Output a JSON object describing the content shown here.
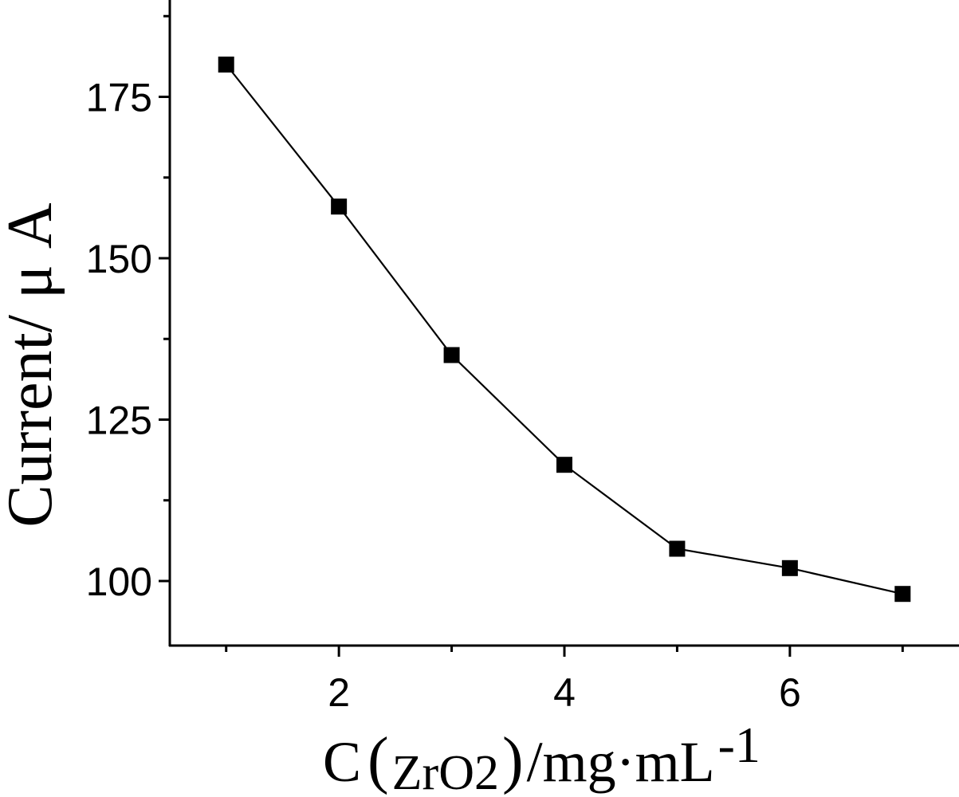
{
  "chart_data": {
    "type": "line",
    "title": "",
    "xlabel": {
      "main": "C",
      "paren_open": "(",
      "sub": "ZrO2",
      "paren_close": ")",
      "unit": "/mg·mL",
      "sup": "-1"
    },
    "ylabel": "Current/ μ A",
    "x": [
      1,
      2,
      3,
      4,
      5,
      6,
      7
    ],
    "series": [
      {
        "values": [
          180,
          158,
          135,
          118,
          105,
          102,
          98
        ],
        "marker": "square",
        "color": "#000000"
      }
    ],
    "xlim": [
      0.5,
      7.5
    ],
    "ylim": [
      90,
      190
    ],
    "xticks": [
      {
        "value": 2,
        "label": "2"
      },
      {
        "value": 4,
        "label": "4"
      },
      {
        "value": 6,
        "label": "6"
      }
    ],
    "xminor": [
      1,
      3,
      5,
      7
    ],
    "yticks": [
      {
        "value": 100,
        "label": "100"
      },
      {
        "value": 125,
        "label": "125"
      },
      {
        "value": 150,
        "label": "150"
      },
      {
        "value": 175,
        "label": "175"
      }
    ],
    "yminor": [
      112.5,
      137.5,
      162.5,
      187.5
    ],
    "grid": false,
    "legend": "none"
  }
}
